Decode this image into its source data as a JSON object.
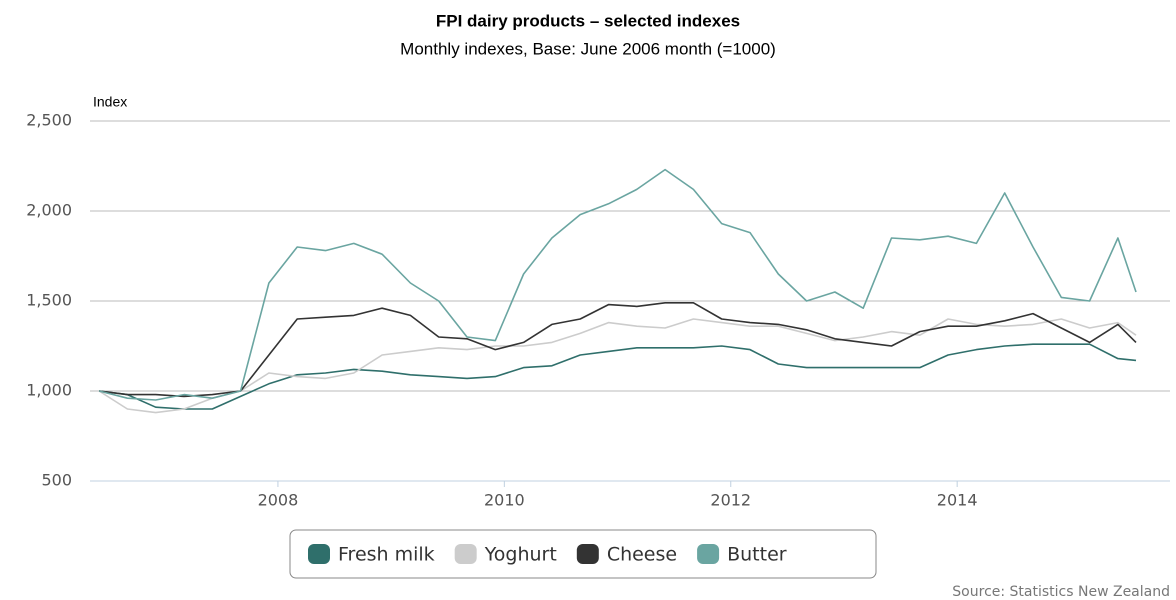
{
  "chart_data": {
    "type": "line",
    "title": "FPI dairy products – selected indexes",
    "subtitle": "Monthly indexes, Base: June 2006 month (=1000)",
    "y_label": "Index",
    "source": "Source: Statistics New Zealand",
    "x": [
      2006.42,
      2006.67,
      2006.92,
      2007.17,
      2007.42,
      2007.67,
      2007.92,
      2008.17,
      2008.42,
      2008.67,
      2008.92,
      2009.17,
      2009.42,
      2009.67,
      2009.92,
      2010.17,
      2010.42,
      2010.67,
      2010.92,
      2011.17,
      2011.42,
      2011.67,
      2011.92,
      2012.17,
      2012.42,
      2012.67,
      2012.92,
      2013.17,
      2013.42,
      2013.67,
      2013.92,
      2014.17,
      2014.42,
      2014.67,
      2014.92,
      2015.17,
      2015.42,
      2015.58
    ],
    "xlim": [
      2006.34,
      2015.88
    ],
    "xticks": [
      2008,
      2010,
      2012,
      2014
    ],
    "ylim": [
      500,
      2500
    ],
    "yticks": [
      500,
      {
        "value": 1000,
        "label": "1,000"
      },
      {
        "value": 1500,
        "label": "1,500"
      },
      {
        "value": 2000,
        "label": "2,000"
      },
      {
        "value": 2500,
        "label": "2,500"
      }
    ],
    "grid": true,
    "series": [
      {
        "name": "Fresh milk",
        "color": "#2f6f6b",
        "values": [
          1000,
          980,
          910,
          900,
          900,
          970,
          1040,
          1090,
          1100,
          1120,
          1110,
          1090,
          1080,
          1070,
          1080,
          1130,
          1140,
          1200,
          1220,
          1240,
          1240,
          1240,
          1250,
          1230,
          1150,
          1130,
          1130,
          1130,
          1130,
          1130,
          1200,
          1230,
          1250,
          1260,
          1260,
          1260,
          1180,
          1170
        ]
      },
      {
        "name": "Yoghurt",
        "color": "#cccccc",
        "values": [
          1000,
          900,
          880,
          900,
          960,
          1000,
          1100,
          1080,
          1070,
          1100,
          1200,
          1220,
          1240,
          1230,
          1250,
          1250,
          1270,
          1320,
          1380,
          1360,
          1350,
          1400,
          1380,
          1360,
          1360,
          1320,
          1280,
          1300,
          1330,
          1310,
          1400,
          1370,
          1360,
          1370,
          1400,
          1350,
          1380,
          1310
        ]
      },
      {
        "name": "Cheese",
        "color": "#333333",
        "values": [
          1000,
          980,
          980,
          970,
          980,
          1000,
          1200,
          1400,
          1410,
          1420,
          1460,
          1420,
          1300,
          1290,
          1230,
          1270,
          1370,
          1400,
          1480,
          1470,
          1490,
          1490,
          1400,
          1380,
          1370,
          1340,
          1290,
          1270,
          1250,
          1330,
          1360,
          1360,
          1390,
          1430,
          1350,
          1270,
          1370,
          1270
        ]
      },
      {
        "name": "Butter",
        "color": "#6aa5a1",
        "values": [
          1000,
          960,
          950,
          980,
          960,
          1000,
          1600,
          1800,
          1780,
          1820,
          1760,
          1600,
          1500,
          1300,
          1280,
          1650,
          1850,
          1980,
          2040,
          2120,
          2230,
          2120,
          1930,
          1880,
          1650,
          1500,
          1550,
          1460,
          1850,
          1840,
          1860,
          1820,
          2100,
          1800,
          1520,
          1500,
          1850,
          1550
        ]
      }
    ]
  }
}
